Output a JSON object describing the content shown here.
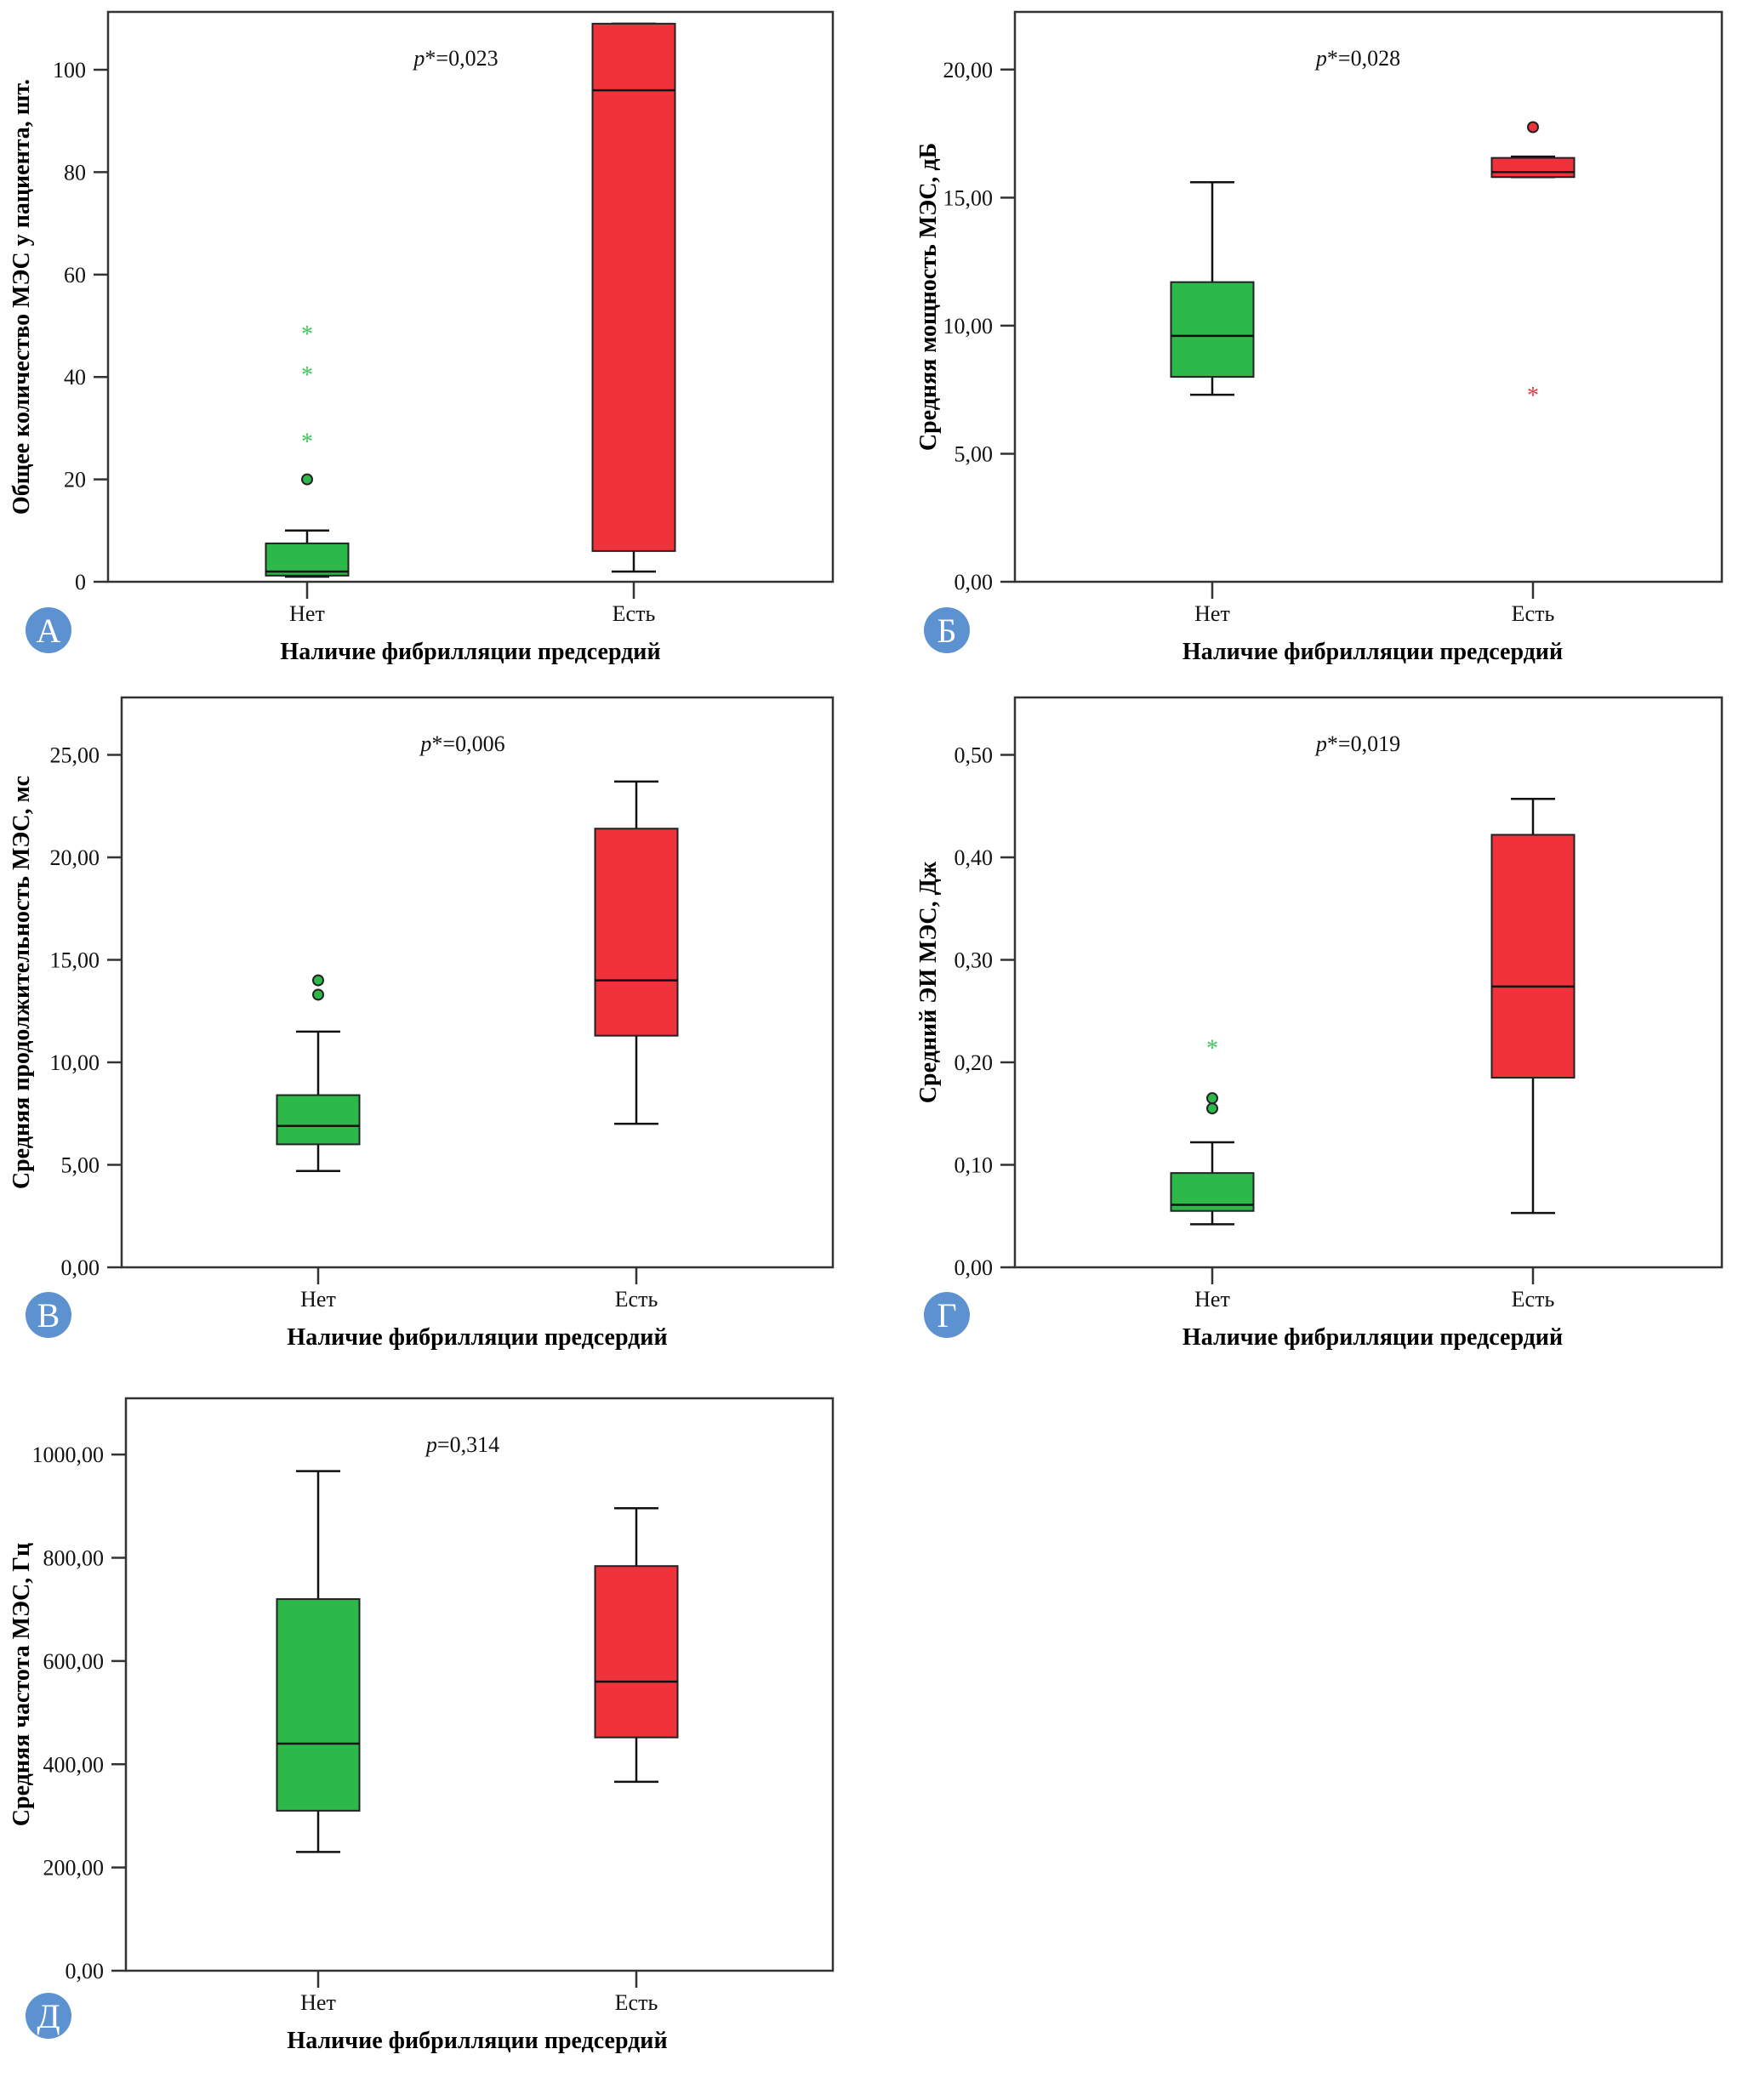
{
  "figure": {
    "colors": {
      "group_no": "#2db84a",
      "group_yes": "#f0323a",
      "outlier_star_no": "#3cc45a",
      "outlier_star_yes": "#f0323a",
      "badge": "#5b92cf",
      "frame": "#333333"
    }
  },
  "chart_data": [
    {
      "type": "boxplot",
      "panel_label": "А",
      "pvalue_text_prefix": "p",
      "pvalue_text_rest": "*=0,023",
      "xlabel": "Наличие фибрилляции предсердий",
      "ylabel": "Общее количество МЭС у пациента, шт.",
      "categories": [
        "Нет",
        "Есть"
      ],
      "ylim": [
        0,
        111.3
      ],
      "yticks": [
        0,
        20,
        40,
        60,
        80,
        100
      ],
      "ytick_labels": [
        "0",
        "20",
        "40",
        "60",
        "80",
        "100"
      ],
      "boxes": [
        {
          "category": "Нет",
          "whisker_low": 1,
          "q1": 1.2,
          "median": 2,
          "q3": 7.5,
          "whisker_high": 10,
          "outliers_circle": [
            20
          ],
          "outliers_star": [
            28,
            41,
            49
          ]
        },
        {
          "category": "Есть",
          "whisker_low": 2,
          "q1": 6,
          "median": 96,
          "q3": 109,
          "whisker_high": 109,
          "outliers_circle": [],
          "outliers_star": []
        }
      ]
    },
    {
      "type": "boxplot",
      "panel_label": "Б",
      "pvalue_text_prefix": "p",
      "pvalue_text_rest": "*=0,028",
      "xlabel": "Наличие фибрилляции предсердий",
      "ylabel": "Средняя мощность МЭС, дБ",
      "categories": [
        "Нет",
        "Есть"
      ],
      "ylim": [
        0,
        22.25
      ],
      "yticks": [
        0,
        5,
        10,
        15,
        20
      ],
      "ytick_labels": [
        "0,00",
        "5,00",
        "10,00",
        "15,00",
        "20,00"
      ],
      "boxes": [
        {
          "category": "Нет",
          "whisker_low": 7.3,
          "q1": 8.0,
          "median": 9.6,
          "q3": 11.7,
          "whisker_high": 15.6,
          "outliers_circle": [],
          "outliers_star": []
        },
        {
          "category": "Есть",
          "whisker_low": 15.8,
          "q1": 15.8,
          "median": 16.0,
          "q3": 16.55,
          "whisker_high": 16.6,
          "outliers_circle": [
            17.75
          ],
          "outliers_star": [
            7.4
          ]
        }
      ]
    },
    {
      "type": "boxplot",
      "panel_label": "В",
      "pvalue_text_prefix": "p",
      "pvalue_text_rest": "*=0,006",
      "xlabel": "Наличие фибрилляции предсердий",
      "ylabel": "Средняя продолжительность МЭС, мс",
      "categories": [
        "Нет",
        "Есть"
      ],
      "ylim": [
        0,
        27.8
      ],
      "yticks": [
        0,
        5,
        10,
        15,
        20,
        25
      ],
      "ytick_labels": [
        "0,00",
        "5,00",
        "10,00",
        "15,00",
        "20,00",
        "25,00"
      ],
      "boxes": [
        {
          "category": "Нет",
          "whisker_low": 4.7,
          "q1": 6.0,
          "median": 6.9,
          "q3": 8.4,
          "whisker_high": 11.5,
          "outliers_circle": [
            13.3,
            14.0
          ],
          "outliers_star": []
        },
        {
          "category": "Есть",
          "whisker_low": 7.0,
          "q1": 11.3,
          "median": 14.0,
          "q3": 21.4,
          "whisker_high": 23.7,
          "outliers_circle": [],
          "outliers_star": []
        }
      ]
    },
    {
      "type": "boxplot",
      "panel_label": "Г",
      "pvalue_text_prefix": "p",
      "pvalue_text_rest": "*=0,019",
      "xlabel": "Наличие фибрилляции предсердий",
      "ylabel": "Средний ЭИ МЭС, Дж",
      "categories": [
        "Нет",
        "Есть"
      ],
      "ylim": [
        0,
        0.556
      ],
      "yticks": [
        0,
        0.1,
        0.2,
        0.3,
        0.4,
        0.5
      ],
      "ytick_labels": [
        "0,00",
        "0,10",
        "0,20",
        "0,30",
        "0,40",
        "0,50"
      ],
      "boxes": [
        {
          "category": "Нет",
          "whisker_low": 0.042,
          "q1": 0.055,
          "median": 0.061,
          "q3": 0.092,
          "whisker_high": 0.122,
          "outliers_circle": [
            0.155,
            0.165
          ],
          "outliers_star": [
            0.217
          ]
        },
        {
          "category": "Есть",
          "whisker_low": 0.053,
          "q1": 0.185,
          "median": 0.274,
          "q3": 0.422,
          "whisker_high": 0.457,
          "outliers_circle": [],
          "outliers_star": []
        }
      ]
    },
    {
      "type": "boxplot",
      "panel_label": "Д",
      "pvalue_text_prefix": "p",
      "pvalue_text_rest": "=0,314",
      "xlabel": "Наличие фибрилляции предсердий",
      "ylabel": "Средняя частота МЭС, Гц",
      "categories": [
        "Нет",
        "Есть"
      ],
      "ylim": [
        0,
        1109
      ],
      "yticks": [
        0,
        200,
        400,
        600,
        800,
        1000
      ],
      "ytick_labels": [
        "0,00",
        "200,00",
        "400,00",
        "600,00",
        "800,00",
        "1000,00"
      ],
      "boxes": [
        {
          "category": "Нет",
          "whisker_low": 230,
          "q1": 310,
          "median": 440,
          "q3": 720,
          "whisker_high": 968,
          "outliers_circle": [],
          "outliers_star": []
        },
        {
          "category": "Есть",
          "whisker_low": 366,
          "q1": 452,
          "median": 560,
          "q3": 784,
          "whisker_high": 896,
          "outliers_circle": [],
          "outliers_star": []
        }
      ]
    }
  ]
}
